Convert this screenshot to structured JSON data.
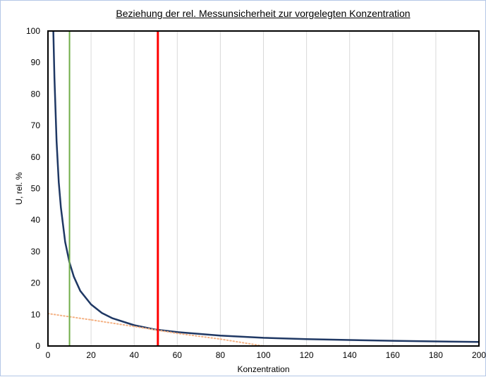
{
  "chart_data": {
    "type": "line",
    "title": "Beziehung der rel. Messunsicherheit zur vorgelegten Konzentration",
    "xlabel": "Konzentration",
    "ylabel": "U, rel. %",
    "xlim": [
      0,
      200
    ],
    "ylim": [
      0,
      100
    ],
    "xticks": [
      "0",
      "20",
      "40",
      "60",
      "80",
      "100",
      "120",
      "140",
      "160",
      "180",
      "200"
    ],
    "yticks": [
      "0",
      "10",
      "20",
      "30",
      "40",
      "50",
      "60",
      "70",
      "80",
      "90",
      "100"
    ],
    "grid": "vertical",
    "series": [
      {
        "kind": "line",
        "color": "#1f3864",
        "x": [
          2.5,
          3,
          4,
          5,
          6,
          8,
          10,
          12,
          15,
          20,
          25,
          30,
          40,
          50,
          60,
          80,
          100,
          120,
          140,
          160,
          180,
          200
        ],
        "y": [
          100,
          85,
          65,
          52,
          44,
          33,
          26.5,
          22,
          17.5,
          13.2,
          10.5,
          8.8,
          6.6,
          5.2,
          4.4,
          3.3,
          2.6,
          2.2,
          1.9,
          1.65,
          1.45,
          1.3
        ]
      },
      {
        "kind": "dotted-trend",
        "color": "#f4b183",
        "x": [
          0,
          20,
          40,
          60,
          80,
          100
        ],
        "y": [
          10.3,
          8.3,
          6.2,
          4.0,
          2.2,
          0
        ]
      }
    ],
    "vertical_lines": [
      {
        "x": 10,
        "color": "#70ad47"
      },
      {
        "x": 51,
        "color": "#ff0000"
      }
    ]
  }
}
